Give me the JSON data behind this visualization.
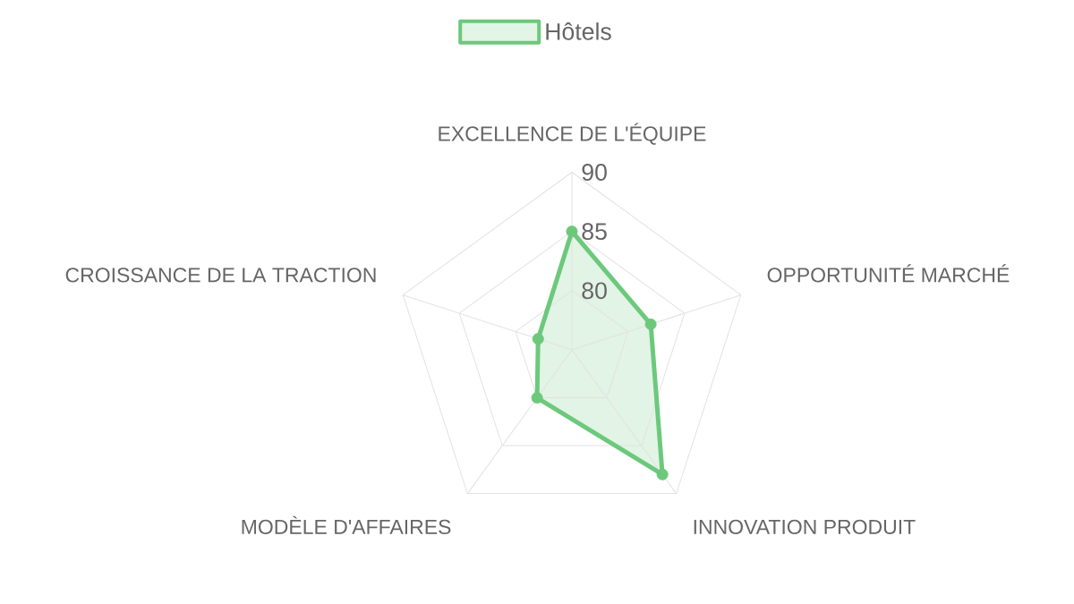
{
  "chart_data": {
    "type": "radar",
    "categories": [
      "EXCELLENCE DE L'ÉQUIPE",
      "OPPORTUNITÉ MARCHÉ",
      "INNOVATION PRODUIT",
      "MODÈLE D'AFFAIRES",
      "CROISSANCE DE LA TRACTION"
    ],
    "series": [
      {
        "name": "Hôtels",
        "color": "#6cc97c",
        "values": [
          85,
          82,
          88,
          80,
          78
        ]
      }
    ],
    "ylim": [
      75,
      90
    ],
    "yticks": [
      80,
      85,
      90
    ],
    "grid": true,
    "legend": "top",
    "marker": "circle"
  }
}
